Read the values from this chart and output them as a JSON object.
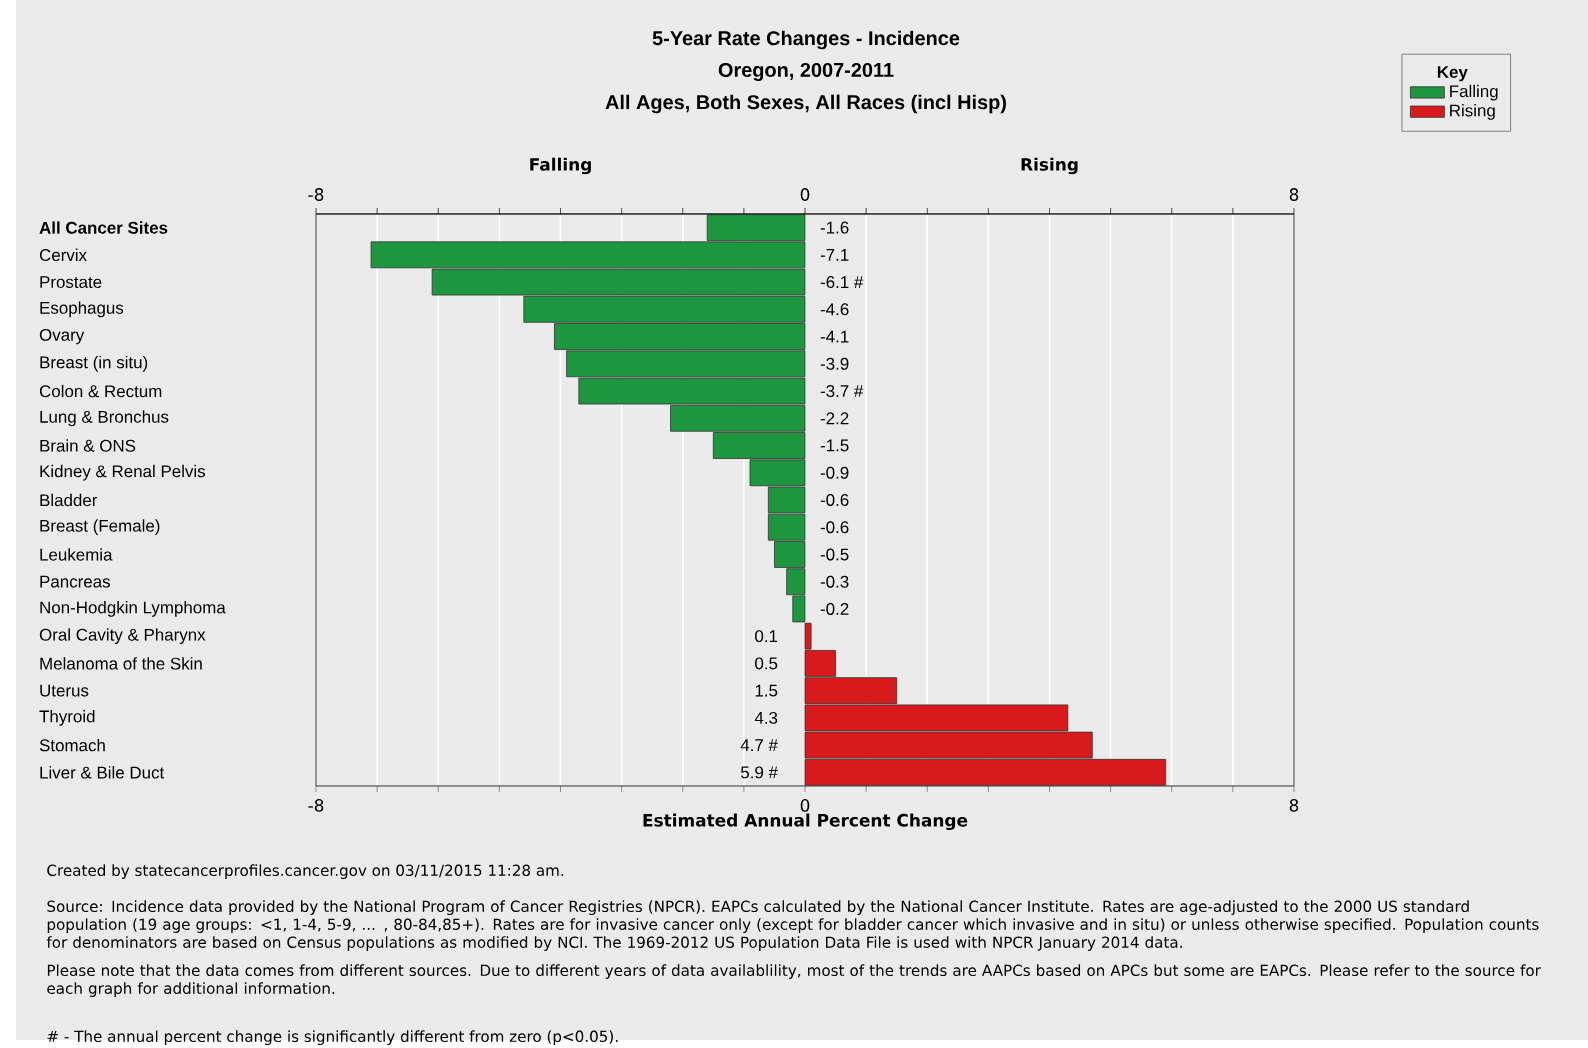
{
  "chart_data": {
    "type": "bar",
    "orientation": "horizontal",
    "title": "5-Year Rate Changes - Incidence",
    "subtitle": "Oregon, 2007-2011",
    "xlabel": "Estimated Annual Percent Change",
    "legend_title": "Key",
    "legend": "top right",
    "grid": "x",
    "categories": [
      "All Cancer Sites",
      "Cervix",
      "Prostate",
      "Esophagus",
      "Ovary",
      "Breast (in situ)",
      "Colon & Rectum",
      "Lung & Bronchus",
      "Brain & ONS",
      "Kidney & Renal Pelvis",
      "Bladder",
      "Breast (Female)",
      "Leukemia",
      "Pancreas",
      "Non-Hodgkin Lymphoma",
      "Oral Cavity & Pharynx",
      "Melanoma of the Skin",
      "Uterus",
      "Thyroid",
      "Stomach",
      "Liver & Bile Duct"
    ],
    "series": [
      {
        "name": "Falling",
        "color": "#1e9640",
        "values": [
          -1.6,
          -7.1,
          -6.1,
          -4.6,
          -4.1,
          -3.9,
          -3.7,
          -2.2,
          -1.5,
          -0.9,
          -0.6,
          -0.6,
          -0.5,
          -0.3,
          -0.2,
          null,
          null,
          null,
          null,
          null,
          null
        ],
        "value_labels": [
          "-1.6",
          "-7.1",
          "-6.1 #",
          "-4.6",
          "-4.1",
          "-3.9",
          "-3.7 #",
          "-2.2",
          "-1.5",
          "-0.9",
          "-0.6",
          "-0.6",
          "-0.5",
          "-0.3",
          "-0.2",
          null,
          null,
          null,
          null,
          null,
          null
        ]
      },
      {
        "name": "Rising",
        "color": "#d91a1d",
        "values": [
          null,
          null,
          null,
          null,
          null,
          null,
          null,
          null,
          null,
          null,
          null,
          null,
          null,
          null,
          null,
          0.1,
          0.5,
          1.5,
          4.3,
          4.7,
          5.9
        ],
        "value_labels": [
          null,
          null,
          null,
          null,
          null,
          null,
          null,
          null,
          null,
          null,
          null,
          null,
          null,
          null,
          null,
          "0.1",
          "0.5",
          "1.5",
          "4.3",
          "4.7 #",
          "5.9 #"
        ]
      }
    ],
    "xlim": [
      -8,
      8
    ],
    "xticks": [
      -8,
      {
        "value": -7,
        "label": null
      },
      {
        "value": -6,
        "label": null
      },
      {
        "value": -5,
        "label": null
      },
      {
        "value": -4,
        "label": null
      },
      {
        "value": -3,
        "label": null
      },
      {
        "value": -2,
        "label": null
      },
      {
        "value": -1,
        "label": null
      },
      0,
      {
        "value": 1,
        "label": null
      },
      {
        "value": 2,
        "label": null
      },
      {
        "value": 3,
        "label": null
      },
      {
        "value": 4,
        "label": null
      },
      {
        "value": 5,
        "label": null
      },
      {
        "value": 6,
        "label": null
      },
      {
        "value": 7,
        "label": null
      },
      8
    ],
    "x2lim": [
      -8,
      8
    ],
    "x2ticks": [
      -8,
      {
        "value": -7,
        "label": null
      },
      {
        "value": -6,
        "label": null
      },
      {
        "value": -5,
        "label": null
      },
      {
        "value": -4,
        "label": null
      },
      {
        "value": -3,
        "label": null
      },
      {
        "value": -2,
        "label": null
      },
      {
        "value": -1,
        "label": null
      },
      0,
      {
        "value": 1,
        "label": null
      },
      {
        "value": 2,
        "label": null
      },
      {
        "value": 3,
        "label": null
      },
      {
        "value": 4,
        "label": null
      },
      {
        "value": 5,
        "label": null
      },
      {
        "value": 6,
        "label": null
      },
      {
        "value": 7,
        "label": null
      },
      8
    ],
    "annotations": [
      "Falling",
      "Rising",
      "All Ages, Both Sexes, All Races (incl Hisp)",
      "Created by statecancerprofiles.cancer.gov on 03/11/2015 11:28 am.",
      "Source: Incidence data provided by the National Program of Cancer Registries (NPCR). EAPCs calculated by the National Cancer Institute. Rates are age-adjusted to the 2000 US standard population (19 age groups: <1, 1-4, 5-9, ... , 80-84,85+). Rates are for invasive cancer only (except for bladder cancer which invasive and in situ) or unless otherwise specified. Population counts for denominators are based on Census populations as modified by NCI. The 1969-2012 US Population Data File is used with NPCR January 2014 data.",
      "Please note that the data comes from different sources. Due to different years of data availablility, most of the trends are AAPCs based on APCs but some are EAPCs. Please refer to the source for each graph for additional information.",
      "# - The annual percent change is significantly different from zero (p<0.05)."
    ]
  }
}
